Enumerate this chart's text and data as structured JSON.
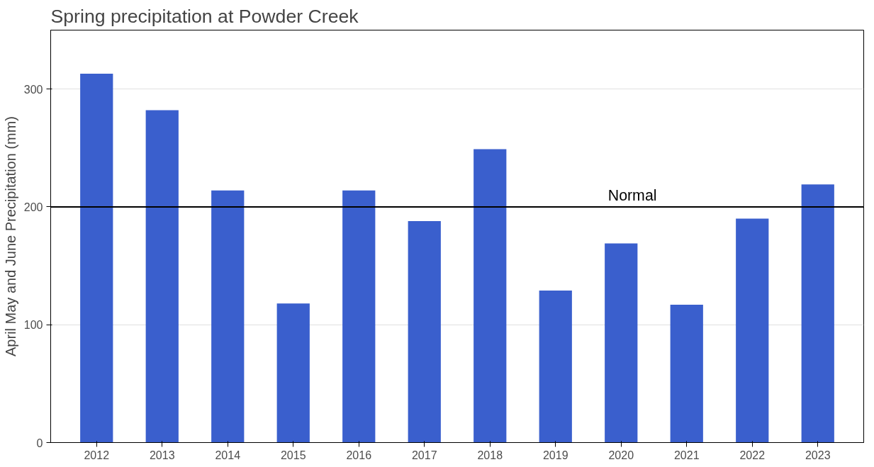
{
  "chart_data": {
    "type": "bar",
    "title": "Spring precipitation at Powder Creek",
    "ylabel": "April May and June Precipitation (mm)",
    "categories": [
      "2012",
      "2013",
      "2014",
      "2015",
      "2016",
      "2017",
      "2018",
      "2019",
      "2020",
      "2021",
      "2022",
      "2023"
    ],
    "values": [
      313,
      282,
      214,
      118,
      214,
      188,
      249,
      129,
      169,
      117,
      190,
      219
    ],
    "color": "#3a5fcd",
    "ylim": [
      0,
      350
    ],
    "yticks": [
      0,
      100,
      200,
      300
    ],
    "grid": "y",
    "ref_lines": [
      {
        "axis": "y",
        "value": 200,
        "label": "Normal",
        "color": "#000000"
      }
    ]
  }
}
